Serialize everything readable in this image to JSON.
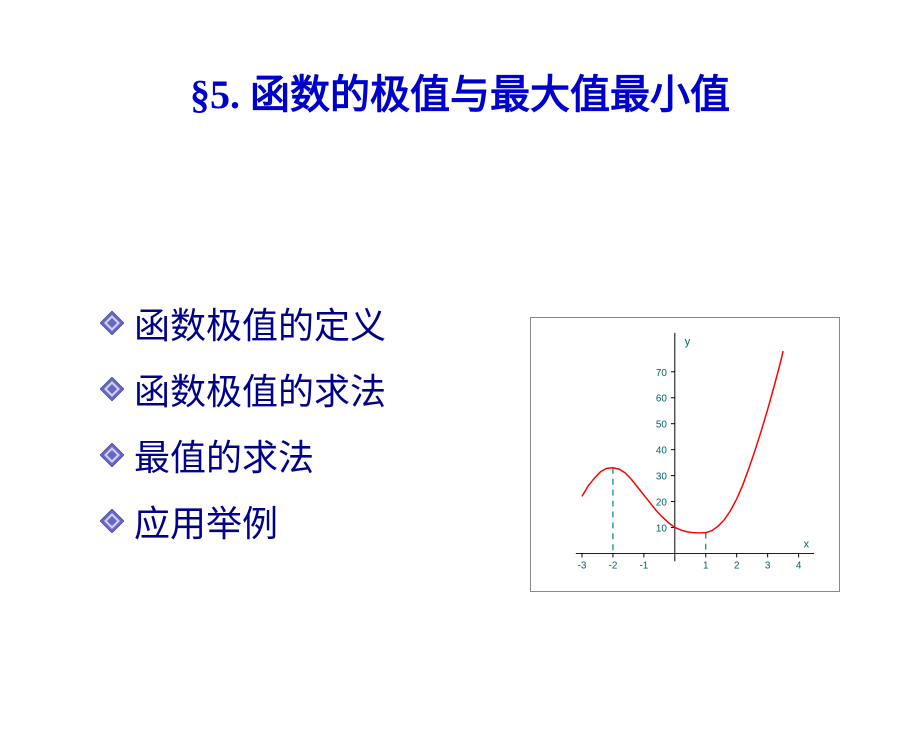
{
  "title": "§5.   函数的极值与最大值最小值",
  "bullets": [
    "函数极值的定义",
    "函数极值的求法",
    "最值的求法",
    "应用举例"
  ],
  "chart": {
    "type": "line",
    "x_label": "x",
    "y_label": "y",
    "xlim": [
      -3.2,
      4.5
    ],
    "ylim": [
      -3,
      85
    ],
    "x_ticks": [
      -3,
      -2,
      -1,
      1,
      2,
      3,
      4
    ],
    "y_ticks": [
      10,
      20,
      30,
      40,
      50,
      60,
      70
    ],
    "curve_color": "#ff0000",
    "axis_color": "#000000",
    "tick_color": "#006666",
    "dash_color": "#008080",
    "background_color": "#ffffff",
    "label_fontsize": 11,
    "tick_fontsize": 10,
    "extrema_x": [
      -2,
      1
    ],
    "extrema_y": [
      33,
      8
    ],
    "curve_points": [
      [
        -3,
        22
      ],
      [
        -2.8,
        26
      ],
      [
        -2.6,
        29
      ],
      [
        -2.4,
        31.5
      ],
      [
        -2.2,
        32.8
      ],
      [
        -2,
        33
      ],
      [
        -1.8,
        32.5
      ],
      [
        -1.6,
        31
      ],
      [
        -1.4,
        28.5
      ],
      [
        -1.2,
        25.5
      ],
      [
        -1,
        22.5
      ],
      [
        -0.8,
        19.5
      ],
      [
        -0.6,
        16.5
      ],
      [
        -0.4,
        14
      ],
      [
        -0.2,
        11.8
      ],
      [
        0,
        10
      ],
      [
        0.2,
        9
      ],
      [
        0.4,
        8.3
      ],
      [
        0.6,
        8
      ],
      [
        0.8,
        7.9
      ],
      [
        1,
        8
      ],
      [
        1.2,
        8.8
      ],
      [
        1.4,
        10.5
      ],
      [
        1.6,
        13
      ],
      [
        1.8,
        16.5
      ],
      [
        2,
        21
      ],
      [
        2.2,
        26.5
      ],
      [
        2.4,
        33
      ],
      [
        2.6,
        40
      ],
      [
        2.8,
        47.5
      ],
      [
        3,
        55.5
      ],
      [
        3.2,
        64
      ],
      [
        3.4,
        73
      ],
      [
        3.5,
        78
      ]
    ]
  }
}
